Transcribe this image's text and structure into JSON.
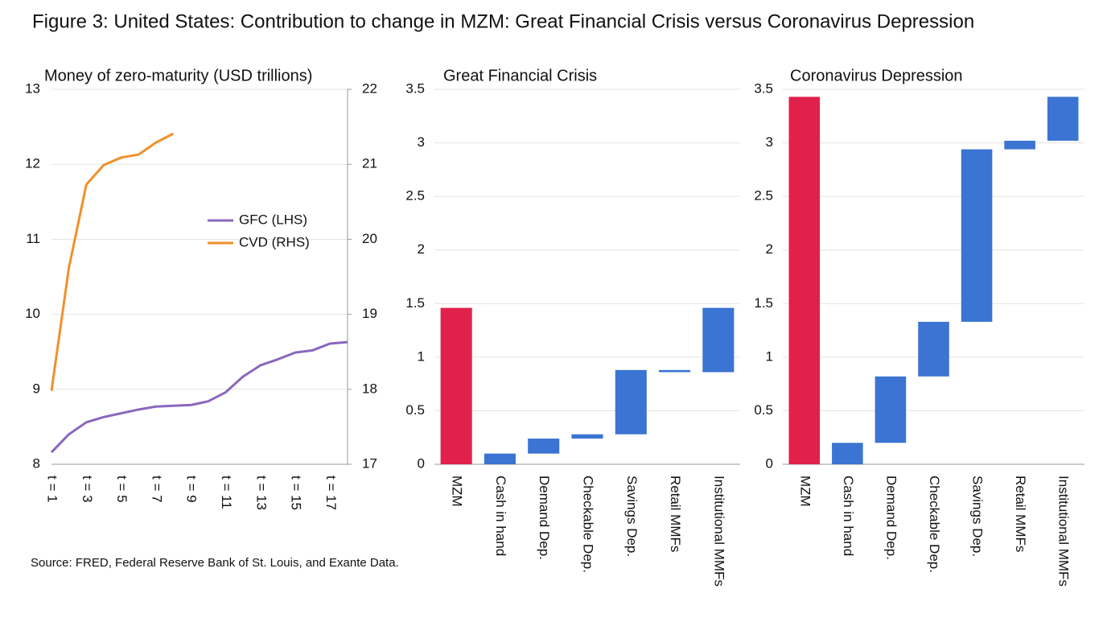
{
  "title": "Figure 3: United States: Contribution to change in MZM: Great Financial Crisis versus Coronavirus Depression",
  "source": "Source: FRED, Federal Reserve Bank of St. Louis, and Exante Data.",
  "chart_data": [
    {
      "type": "line",
      "title": "Money of zero-maturity (USD trillions)",
      "categories": [
        "t = 1",
        null,
        "t = 3",
        null,
        "t = 5",
        null,
        "t = 7",
        null,
        "t = 9",
        null,
        "t = 11",
        null,
        "t = 13",
        null,
        "t = 15",
        null,
        "t = 17",
        null
      ],
      "series": [
        {
          "name": "GFC (LHS)",
          "color": "#8a68bd",
          "values": [
            8.16,
            8.4,
            8.56,
            8.63,
            8.68,
            8.73,
            8.77,
            8.78,
            8.79,
            8.84,
            8.96,
            9.17,
            9.32,
            9.4,
            9.49,
            9.52,
            9.61,
            9.63
          ]
        },
        {
          "name": "CVD (RHS)",
          "color": "#f0902a",
          "axis": "y2",
          "values": [
            17.98,
            19.62,
            20.73,
            20.99,
            21.09,
            21.13,
            21.29,
            21.41,
            null,
            null,
            null,
            null,
            null,
            null,
            null,
            null,
            null,
            null
          ]
        }
      ],
      "ylim": [
        8,
        13
      ],
      "yticks": [
        8,
        9,
        10,
        11,
        12,
        13
      ],
      "y2lim": [
        17,
        22
      ],
      "y2ticks": [
        17,
        18,
        19,
        20,
        21,
        22
      ],
      "grid": true,
      "legend": "center right"
    },
    {
      "type": "waterfall",
      "title": "Great Financial Crisis",
      "categories": [
        "MZM",
        "Cash in hand",
        "Demand Dep.",
        "Checkable Dep.",
        "Savings Dep.",
        "Retail MMFs",
        "Institutional MMFs"
      ],
      "values": [
        1.46,
        0.1,
        0.14,
        0.04,
        0.6,
        -0.02,
        0.6
      ],
      "colors": [
        "#e0214b",
        "#3b74d2",
        "#3b74d2",
        "#3b74d2",
        "#3b74d2",
        "#3b74d2",
        "#3b74d2"
      ],
      "ylim": [
        0,
        3.5
      ],
      "yticks": [
        0,
        0.5,
        1,
        1.5,
        2,
        2.5,
        3,
        3.5
      ],
      "grid": true
    },
    {
      "type": "waterfall",
      "title": "Coronavirus Depression",
      "categories": [
        "MZM",
        "Cash in hand",
        "Demand Dep.",
        "Checkable Dep.",
        "Savings Dep.",
        "Retail MMFs",
        "Institutional MMFs"
      ],
      "values": [
        3.43,
        0.2,
        0.62,
        0.51,
        1.61,
        0.08,
        0.41
      ],
      "colors": [
        "#e0214b",
        "#3b74d2",
        "#3b74d2",
        "#3b74d2",
        "#3b74d2",
        "#3b74d2",
        "#3b74d2"
      ],
      "ylim": [
        0,
        3.5
      ],
      "yticks": [
        0,
        0.5,
        1,
        1.5,
        2,
        2.5,
        3,
        3.5
      ],
      "grid": true
    }
  ]
}
